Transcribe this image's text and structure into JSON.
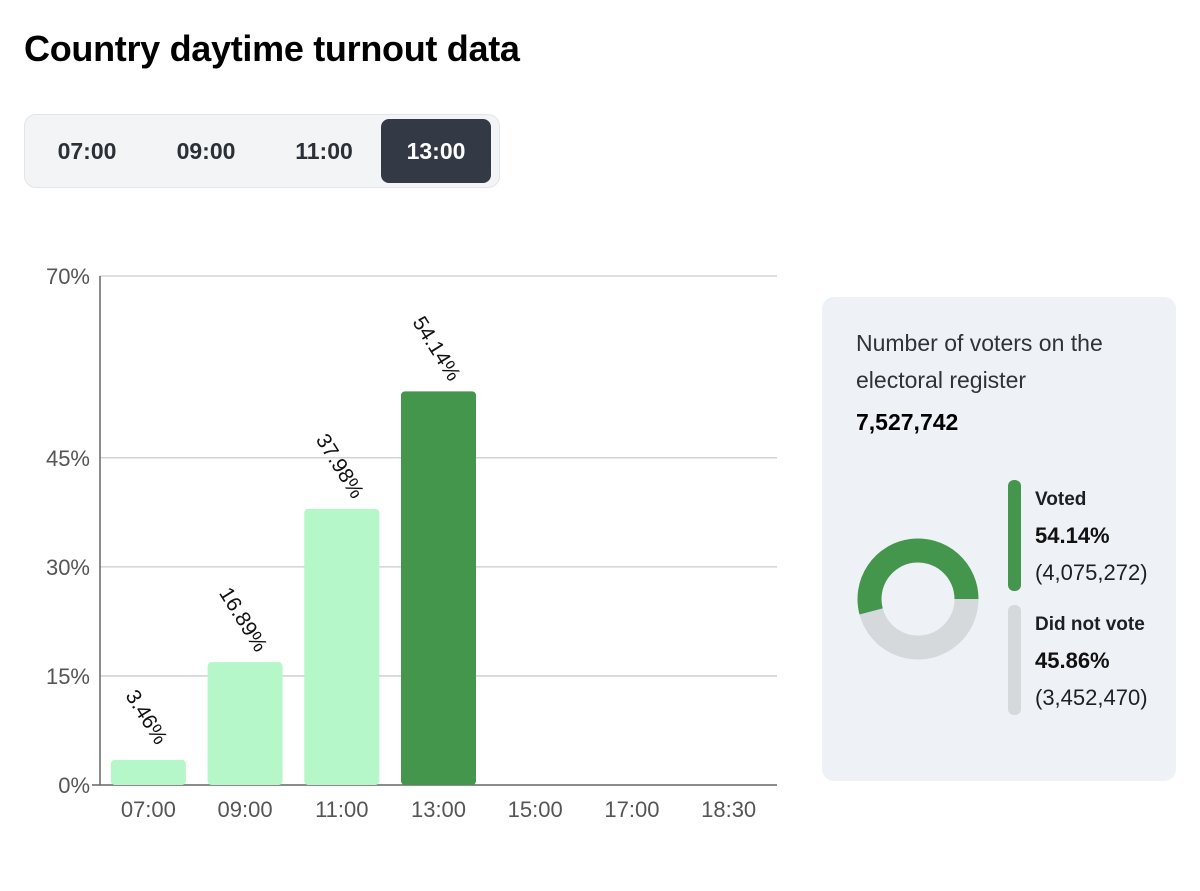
{
  "title": "Country daytime turnout data",
  "tabs": [
    {
      "label": "07:00",
      "active": false
    },
    {
      "label": "09:00",
      "active": false
    },
    {
      "label": "11:00",
      "active": false
    },
    {
      "label": "13:00",
      "active": true
    }
  ],
  "chart_data": {
    "type": "bar",
    "categories": [
      "07:00",
      "09:00",
      "11:00",
      "13:00",
      "15:00",
      "17:00",
      "18:30"
    ],
    "values": [
      3.46,
      16.89,
      37.98,
      54.14,
      null,
      null,
      null
    ],
    "data_labels": [
      "3.46%",
      "16.89%",
      "37.98%",
      "54.14%",
      "",
      "",
      ""
    ],
    "highlight_index": 3,
    "ylim": [
      0,
      70
    ],
    "yticks": [
      0,
      15,
      30,
      45,
      70
    ],
    "ytick_labels": [
      "0%",
      "15%",
      "30%",
      "45%",
      "70%"
    ],
    "grid": true,
    "colors": {
      "bar": "#b5f7c9",
      "highlight": "#43964b",
      "grid": "#cccccc",
      "axis": "#666666",
      "tick_text": "#555555"
    }
  },
  "register": {
    "label": "Number of voters on the electoral register",
    "value": "7,527,742"
  },
  "breakdown": {
    "voted": {
      "name": "Voted",
      "percent": "54.14%",
      "count": "(4,075,272)",
      "fraction": 0.5414,
      "color": "#43964b"
    },
    "not_voted": {
      "name": "Did not vote",
      "percent": "45.86%",
      "count": "(3,452,470)",
      "fraction": 0.4586,
      "color": "#d6d9dc"
    }
  }
}
